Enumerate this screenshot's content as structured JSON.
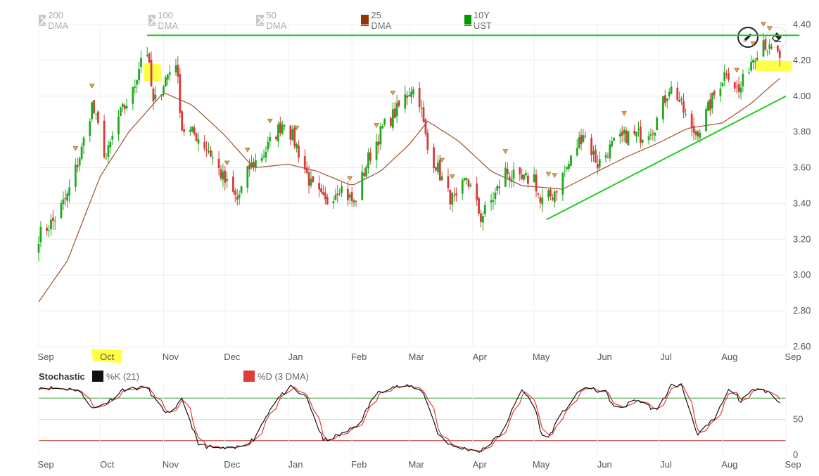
{
  "legend": {
    "items": [
      {
        "label": "200 DMA",
        "enabled": false,
        "color": "#c8c8c8"
      },
      {
        "label": "100 DMA",
        "enabled": false,
        "color": "#c8c8c8"
      },
      {
        "label": "50 DMA",
        "enabled": false,
        "color": "#c8c8c8"
      },
      {
        "label": "25 DMA",
        "enabled": true,
        "color": "#993300"
      },
      {
        "label": "10Y UST",
        "enabled": true,
        "color": "#009900"
      }
    ]
  },
  "tools": {
    "draw": "pencil-icon",
    "erase": "eraser-icon"
  },
  "colors": {
    "up": "#1faa1f",
    "down": "#d93b3b",
    "ma": "#a0522d",
    "trendline": "#22cc22",
    "highlight": "#ffff33",
    "marker": "#e5a43a",
    "k_line": "#111111",
    "d_line": "#e03a3a",
    "overbought": "#3a9a3a",
    "oversold": "#c0392b"
  },
  "chart_data": [
    {
      "type": "candlestick",
      "series": [
        {
          "name": "10Y UST"
        },
        {
          "name": "25 DMA"
        }
      ],
      "x_ticks": [
        "Sep",
        "Oct",
        "Nov",
        "Dec",
        "Jan",
        "Feb",
        "Mar",
        "Apr",
        "May",
        "Jun",
        "Jul",
        "Aug",
        "Sep"
      ],
      "y_ticks": [
        "2.60",
        "2.80",
        "3.00",
        "3.20",
        "3.40",
        "3.60",
        "3.80",
        "4.00",
        "4.20",
        "4.40"
      ],
      "ylim": [
        2.6,
        4.4
      ],
      "highlighted_tick": "Oct",
      "close_anchors": [
        [
          "2022-09-01",
          3.22
        ],
        [
          "2022-09-08",
          3.3
        ],
        [
          "2022-09-15",
          3.44
        ],
        [
          "2022-09-22",
          3.7
        ],
        [
          "2022-09-27",
          3.95
        ],
        [
          "2022-10-04",
          3.65
        ],
        [
          "2022-10-10",
          3.88
        ],
        [
          "2022-10-17",
          4.02
        ],
        [
          "2022-10-21",
          4.22
        ],
        [
          "2022-10-24",
          4.25
        ],
        [
          "2022-10-27",
          3.95
        ],
        [
          "2022-11-02",
          4.1
        ],
        [
          "2022-11-07",
          4.2
        ],
        [
          "2022-11-10",
          3.82
        ],
        [
          "2022-11-17",
          3.78
        ],
        [
          "2022-11-23",
          3.7
        ],
        [
          "2022-12-01",
          3.52
        ],
        [
          "2022-12-07",
          3.42
        ],
        [
          "2022-12-13",
          3.6
        ],
        [
          "2022-12-20",
          3.68
        ],
        [
          "2022-12-30",
          3.87
        ],
        [
          "2023-01-05",
          3.72
        ],
        [
          "2023-01-12",
          3.5
        ],
        [
          "2023-01-19",
          3.4
        ],
        [
          "2023-01-26",
          3.5
        ],
        [
          "2023-02-02",
          3.4
        ],
        [
          "2023-02-09",
          3.65
        ],
        [
          "2023-02-16",
          3.82
        ],
        [
          "2023-02-23",
          3.92
        ],
        [
          "2023-03-02",
          4.05
        ],
        [
          "2023-03-06",
          3.98
        ],
        [
          "2023-03-10",
          3.7
        ],
        [
          "2023-03-14",
          3.62
        ],
        [
          "2023-03-20",
          3.45
        ],
        [
          "2023-03-24",
          3.4
        ],
        [
          "2023-03-29",
          3.55
        ],
        [
          "2023-04-05",
          3.32
        ],
        [
          "2023-04-12",
          3.45
        ],
        [
          "2023-04-17",
          3.58
        ],
        [
          "2023-04-24",
          3.52
        ],
        [
          "2023-05-01",
          3.55
        ],
        [
          "2023-05-04",
          3.4
        ],
        [
          "2023-05-10",
          3.45
        ],
        [
          "2023-05-18",
          3.62
        ],
        [
          "2023-05-25",
          3.8
        ],
        [
          "2023-06-01",
          3.62
        ],
        [
          "2023-06-08",
          3.72
        ],
        [
          "2023-06-15",
          3.78
        ],
        [
          "2023-06-22",
          3.78
        ],
        [
          "2023-06-29",
          3.84
        ],
        [
          "2023-07-06",
          4.05
        ],
        [
          "2023-07-10",
          4.0
        ],
        [
          "2023-07-17",
          3.8
        ],
        [
          "2023-07-21",
          3.82
        ],
        [
          "2023-07-27",
          3.98
        ],
        [
          "2023-08-03",
          4.15
        ],
        [
          "2023-08-09",
          4.02
        ],
        [
          "2023-08-15",
          4.2
        ],
        [
          "2023-08-21",
          4.32
        ],
        [
          "2023-08-24",
          4.25
        ],
        [
          "2023-08-29",
          4.22
        ]
      ],
      "moving_average_25_anchors": [
        [
          "2022-09-01",
          2.85
        ],
        [
          "2022-09-15",
          3.08
        ],
        [
          "2022-10-01",
          3.55
        ],
        [
          "2022-10-15",
          3.8
        ],
        [
          "2022-11-01",
          4.02
        ],
        [
          "2022-11-15",
          3.95
        ],
        [
          "2022-12-01",
          3.78
        ],
        [
          "2022-12-15",
          3.6
        ],
        [
          "2023-01-01",
          3.62
        ],
        [
          "2023-01-15",
          3.58
        ],
        [
          "2023-02-01",
          3.5
        ],
        [
          "2023-02-15",
          3.58
        ],
        [
          "2023-03-01",
          3.73
        ],
        [
          "2023-03-10",
          3.86
        ],
        [
          "2023-03-25",
          3.75
        ],
        [
          "2023-04-10",
          3.58
        ],
        [
          "2023-04-25",
          3.5
        ],
        [
          "2023-05-15",
          3.48
        ],
        [
          "2023-06-01",
          3.58
        ],
        [
          "2023-06-15",
          3.66
        ],
        [
          "2023-07-01",
          3.74
        ],
        [
          "2023-07-15",
          3.82
        ],
        [
          "2023-08-01",
          3.85
        ],
        [
          "2023-08-15",
          3.96
        ],
        [
          "2023-08-29",
          4.1
        ]
      ],
      "annotations": [
        {
          "type": "horizontal-line",
          "value": 4.34,
          "from": "2022-10-24",
          "to": "2023-08-29"
        },
        {
          "type": "trendline",
          "from": [
            "2023-05-07",
            3.31
          ],
          "to": [
            "2023-09-01",
            4.0
          ]
        }
      ]
    },
    {
      "type": "line",
      "title": "Stochastic",
      "series": [
        {
          "name": "%K (21)"
        },
        {
          "name": "%D (3 DMA)"
        }
      ],
      "x_ticks": [
        "Sep",
        "Oct",
        "Nov",
        "Dec",
        "Jan",
        "Feb",
        "Mar",
        "Apr",
        "May",
        "Jun",
        "Jul",
        "Aug",
        "Sep"
      ],
      "y_ticks": [
        "0",
        "50"
      ],
      "ylim": [
        0,
        100
      ],
      "levels": [
        80,
        20
      ],
      "k_anchors": [
        [
          "2022-09-01",
          95
        ],
        [
          "2022-09-20",
          92
        ],
        [
          "2022-09-28",
          65
        ],
        [
          "2022-10-05",
          75
        ],
        [
          "2022-10-12",
          92
        ],
        [
          "2022-10-24",
          95
        ],
        [
          "2022-10-30",
          68
        ],
        [
          "2022-11-05",
          55
        ],
        [
          "2022-11-10",
          80
        ],
        [
          "2022-11-18",
          15
        ],
        [
          "2022-11-25",
          10
        ],
        [
          "2022-12-05",
          8
        ],
        [
          "2022-12-15",
          22
        ],
        [
          "2022-12-25",
          75
        ],
        [
          "2023-01-02",
          95
        ],
        [
          "2023-01-10",
          80
        ],
        [
          "2023-01-18",
          20
        ],
        [
          "2023-01-28",
          30
        ],
        [
          "2023-02-05",
          45
        ],
        [
          "2023-02-12",
          85
        ],
        [
          "2023-02-20",
          96
        ],
        [
          "2023-03-03",
          96
        ],
        [
          "2023-03-08",
          88
        ],
        [
          "2023-03-15",
          30
        ],
        [
          "2023-03-22",
          12
        ],
        [
          "2023-04-05",
          5
        ],
        [
          "2023-04-15",
          30
        ],
        [
          "2023-04-25",
          92
        ],
        [
          "2023-05-01",
          70
        ],
        [
          "2023-05-06",
          15
        ],
        [
          "2023-05-15",
          60
        ],
        [
          "2023-05-25",
          95
        ],
        [
          "2023-06-05",
          88
        ],
        [
          "2023-06-10",
          62
        ],
        [
          "2023-06-20",
          78
        ],
        [
          "2023-06-30",
          62
        ],
        [
          "2023-07-07",
          98
        ],
        [
          "2023-07-12",
          98
        ],
        [
          "2023-07-20",
          28
        ],
        [
          "2023-07-28",
          50
        ],
        [
          "2023-08-05",
          96
        ],
        [
          "2023-08-10",
          75
        ],
        [
          "2023-08-18",
          96
        ],
        [
          "2023-08-24",
          88
        ],
        [
          "2023-08-28",
          75
        ]
      ]
    }
  ],
  "stochastic": {
    "title": "Stochastic",
    "k_label": "%K (21)",
    "d_label": "%D (3 DMA)",
    "k_color": "#111111",
    "d_color": "#e03a3a"
  }
}
